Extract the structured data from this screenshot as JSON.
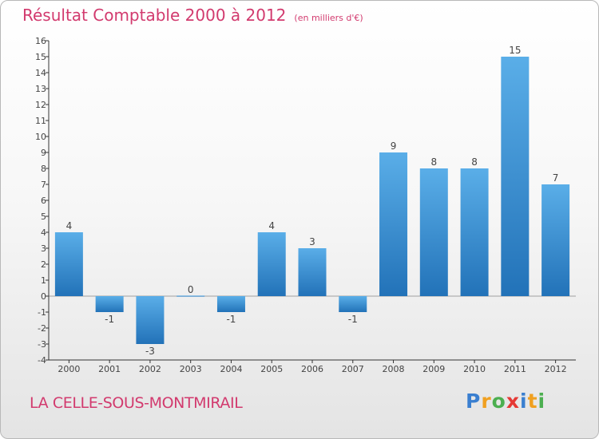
{
  "chart_data": {
    "type": "bar",
    "title": "Résultat Comptable 2000 à 2012",
    "subtitle": "(en milliers d'€)",
    "categories": [
      "2000",
      "2001",
      "2002",
      "2003",
      "2004",
      "2005",
      "2006",
      "2007",
      "2008",
      "2009",
      "2010",
      "2011",
      "2012"
    ],
    "values": [
      4,
      -1,
      -3,
      0,
      -1,
      4,
      3,
      -1,
      9,
      8,
      8,
      15,
      7
    ],
    "data_labels": [
      "4",
      "-1",
      "-3",
      "0",
      "-1",
      "4",
      "3",
      "-1",
      "9",
      "8",
      "8",
      "15",
      "7"
    ],
    "ylim": [
      -4,
      16
    ],
    "yticks": [
      -4,
      -3,
      -2,
      -1,
      0,
      1,
      2,
      3,
      4,
      5,
      6,
      7,
      8,
      9,
      10,
      11,
      12,
      13,
      14,
      15,
      16
    ],
    "xlabel": "",
    "ylabel": "",
    "grid": false,
    "bar_color": "#3a8fd4"
  },
  "footer": {
    "place_name": "LA CELLE-SOUS-MONTMIRAIL",
    "logo_letters": [
      "P",
      "r",
      "o",
      "x",
      "i",
      "t",
      "i"
    ],
    "logo_colors": [
      "#3a7fd0",
      "#f0a020",
      "#4caf50",
      "#e53935",
      "#3a7fd0",
      "#f0a020",
      "#4caf50"
    ]
  }
}
